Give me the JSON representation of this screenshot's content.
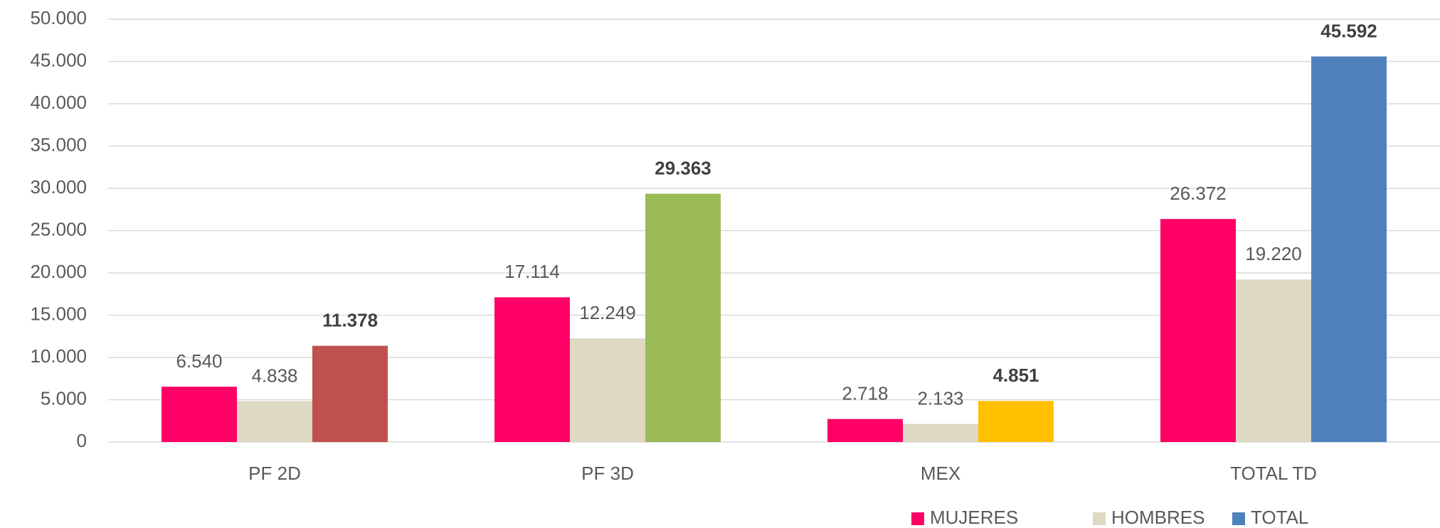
{
  "chart_data": {
    "type": "bar",
    "categories": [
      "PF 2D",
      "PF 3D",
      "MEX",
      "TOTAL TD"
    ],
    "series": [
      {
        "name": "MUJERES",
        "color": "#ff0066",
        "values": [
          6540,
          17114,
          2718,
          26372
        ],
        "value_labels": [
          "6.540",
          "17.114",
          "2.718",
          "26.372"
        ]
      },
      {
        "name": "HOMBRES",
        "color": "#ddd9c3",
        "values": [
          4838,
          12249,
          2133,
          19220
        ],
        "value_labels": [
          "4.838",
          "12.249",
          "2.133",
          "19.220"
        ]
      },
      {
        "name": "TOTAL",
        "color": "#4f81bd",
        "colors": [
          "#c0504d",
          "#9bbb59",
          "#ffc000",
          "#4f81bd"
        ],
        "values": [
          11378,
          29363,
          4851,
          45592
        ],
        "value_labels": [
          "11.378",
          "29.363",
          "4.851",
          "45.592"
        ]
      }
    ],
    "ylim": [
      0,
      50000
    ],
    "yticks": [
      0,
      {
        "value": 5000,
        "label": "5.000"
      },
      {
        "value": 10000,
        "label": "10.000"
      },
      {
        "value": 15000,
        "label": "15.000"
      },
      {
        "value": 20000,
        "label": "20.000"
      },
      {
        "value": 25000,
        "label": "25.000"
      },
      {
        "value": 30000,
        "label": "30.000"
      },
      {
        "value": 35000,
        "label": "35.000"
      },
      {
        "value": 40000,
        "label": "40.000"
      },
      {
        "value": 45000,
        "label": "45.000"
      },
      {
        "value": 50000,
        "label": "50.000"
      }
    ],
    "grid": true,
    "legend": "bottom-right"
  }
}
